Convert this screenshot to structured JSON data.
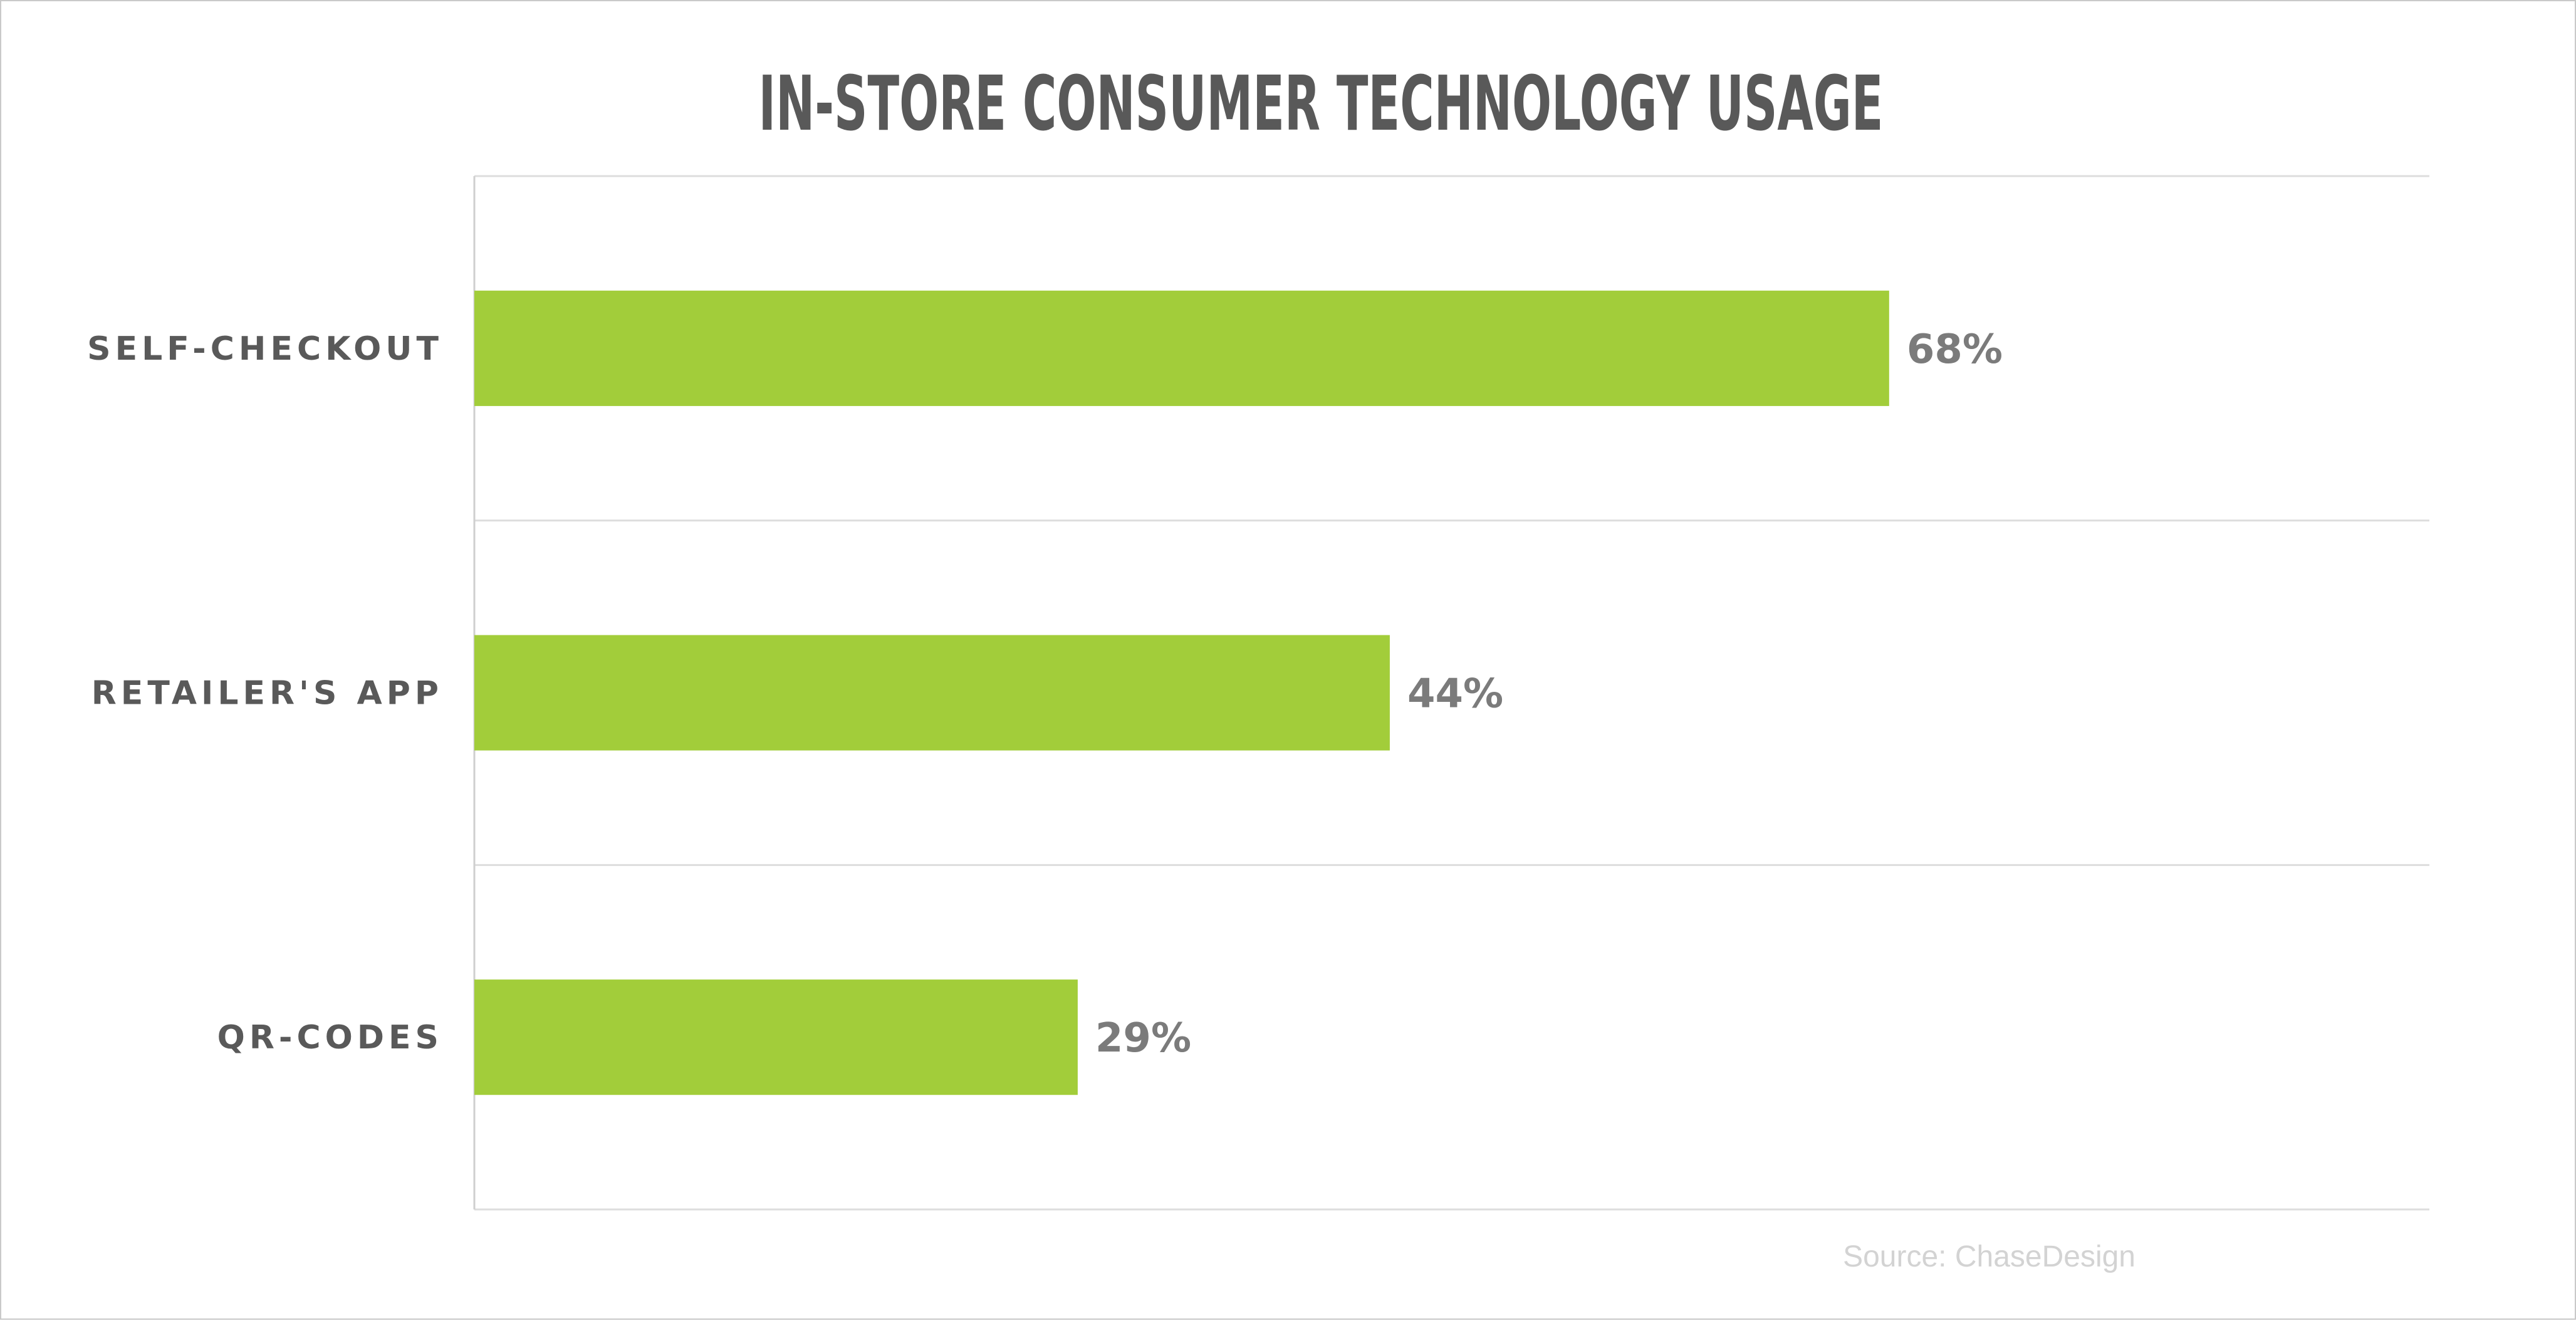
{
  "chart_data": {
    "type": "bar",
    "orientation": "horizontal",
    "title": "IN-STORE CONSUMER TECHNOLOGY USAGE",
    "categories": [
      "SELF-CHECKOUT",
      "RETAILER'S APP",
      "QR-CODES"
    ],
    "values": [
      68,
      44,
      29
    ],
    "value_labels": [
      "68%",
      "44%",
      "29%"
    ],
    "xlim": [
      0,
      80
    ],
    "grid": true,
    "legend": "none",
    "source": "Source: ChaseDesign",
    "bar_color": "#a2cd3a"
  }
}
